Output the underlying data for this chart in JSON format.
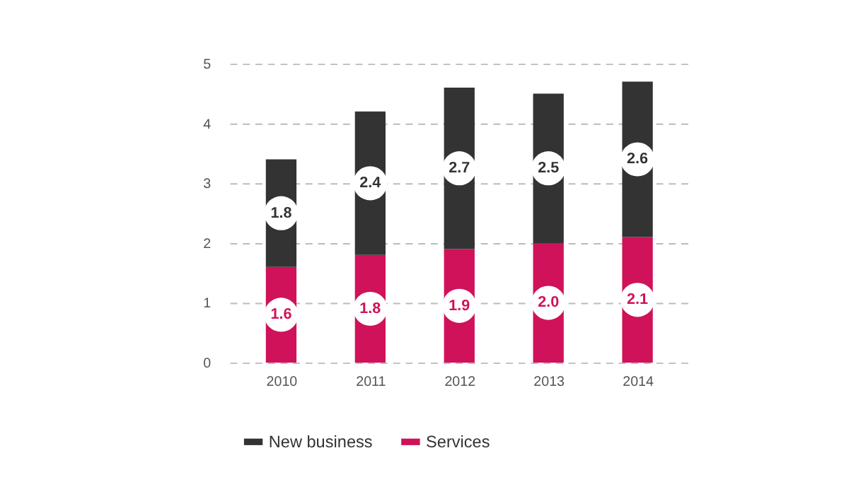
{
  "chart_data": {
    "type": "bar",
    "stacked": true,
    "categories": [
      "2010",
      "2011",
      "2012",
      "2013",
      "2014"
    ],
    "series": [
      {
        "name": "Services",
        "color": "#cf1259",
        "values": [
          1.6,
          1.8,
          1.9,
          2.0,
          2.1
        ],
        "value_labels": [
          "1.6",
          "1.8",
          "1.9",
          "2.0",
          "2.1"
        ]
      },
      {
        "name": "New business",
        "color": "#333333",
        "values": [
          1.8,
          2.4,
          2.7,
          2.5,
          2.6
        ]
      }
    ],
    "ylim": [
      0,
      5
    ],
    "yticks": [
      0,
      1,
      2,
      3,
      4,
      5
    ],
    "grid": "y",
    "legend": "bottom",
    "data_labels": true
  }
}
